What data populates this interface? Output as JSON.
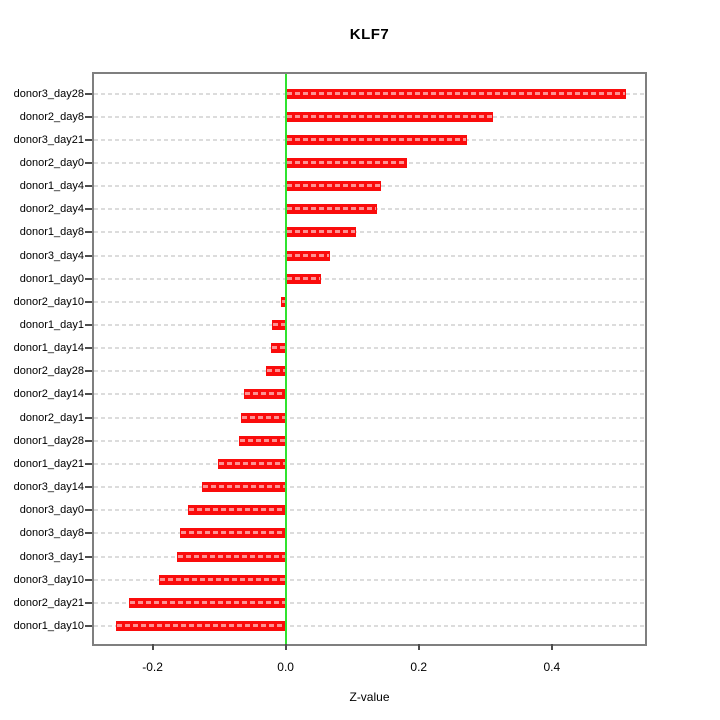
{
  "chart_data": {
    "type": "bar",
    "orientation": "horizontal",
    "title": "KLF7",
    "xlabel": "Z-value",
    "categories": [
      "donor3_day28",
      "donor2_day8",
      "donor3_day21",
      "donor2_day0",
      "donor1_day4",
      "donor2_day4",
      "donor1_day8",
      "donor3_day4",
      "donor1_day0",
      "donor2_day10",
      "donor1_day1",
      "donor1_day14",
      "donor2_day28",
      "donor2_day14",
      "donor2_day1",
      "donor1_day28",
      "donor1_day21",
      "donor3_day14",
      "donor3_day0",
      "donor3_day8",
      "donor3_day1",
      "donor3_day10",
      "donor2_day21",
      "donor1_day10"
    ],
    "values": [
      0.512,
      0.312,
      0.273,
      0.183,
      0.144,
      0.138,
      0.106,
      0.066,
      0.053,
      -0.007,
      -0.021,
      -0.022,
      -0.029,
      -0.063,
      -0.067,
      -0.07,
      -0.102,
      -0.126,
      -0.146,
      -0.159,
      -0.163,
      -0.19,
      -0.236,
      -0.255
    ],
    "xlim": [
      -0.288,
      0.54
    ],
    "x_tick_values": [
      -0.2,
      0.0,
      0.2,
      0.4
    ],
    "x_tick_labels": [
      "-0.2",
      "0.0",
      "0.2",
      "0.4"
    ],
    "zero_reference_line": 0.0,
    "grid": "horizontal dashed line per category row",
    "legend": "none",
    "colors": {
      "bar": "#FA0C0C",
      "bar_dash_overlay": "#FF9D9D",
      "zero_line": "#2FE32F",
      "gridline": "#DCDCDC",
      "box_border": "#7F7F7F",
      "text": "#000000"
    }
  }
}
